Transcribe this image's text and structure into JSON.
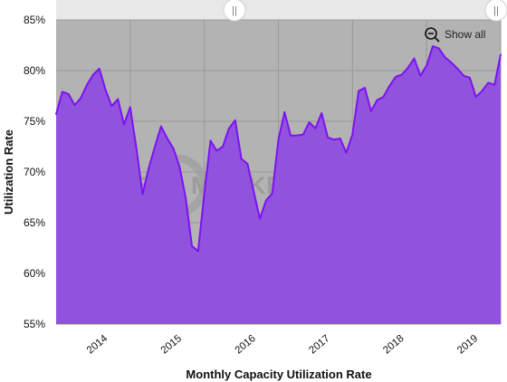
{
  "chart_data": {
    "type": "area",
    "title": "",
    "xlabel": "Monthly Capacity Utilization Rate",
    "ylabel": "Utilization Rate",
    "ylim": [
      55,
      85
    ],
    "y_ticks": [
      "85%",
      "80%",
      "75%",
      "70%",
      "65%",
      "60%",
      "55%"
    ],
    "x_ticks": [
      "2014",
      "2015",
      "2016",
      "2017",
      "2018",
      "2019"
    ],
    "grid": true,
    "series": [
      {
        "values": [
          75.7,
          77.9,
          77.7,
          76.6,
          77.3,
          78.6,
          79.6,
          80.2,
          78.1,
          76.5,
          77.2,
          74.7,
          76.4,
          72.3,
          67.8,
          70.4,
          72.5,
          74.5,
          73.3,
          72.3,
          70.5,
          67.4,
          62.7,
          62.2,
          67.9,
          73.1,
          72.1,
          72.5,
          74.3,
          75.1,
          71.3,
          70.8,
          68.1,
          65.4,
          67.2,
          67.9,
          73.2,
          75.9,
          73.6,
          73.6,
          73.7,
          74.9,
          74.3,
          75.8,
          73.4,
          73.2,
          73.3,
          71.9,
          73.7,
          78.0,
          78.3,
          76.0,
          77.1,
          77.4,
          78.5,
          79.4,
          79.6,
          80.3,
          81.2,
          79.5,
          80.5,
          82.4,
          82.2,
          81.3,
          80.8,
          80.2,
          79.5,
          79.3,
          77.4,
          78.0,
          78.8,
          78.6,
          81.6
        ],
        "color": "#9152DE",
        "line_color": "#7D12F2"
      }
    ],
    "watermark": "STEEL MARKET UPDATE"
  },
  "controls": {
    "show_all_label": "Show all",
    "handle_left": "||",
    "handle_right": "||"
  },
  "colors": {
    "plot_background": "#B3B3B3",
    "navigator_bar": "#E8E8E8"
  }
}
